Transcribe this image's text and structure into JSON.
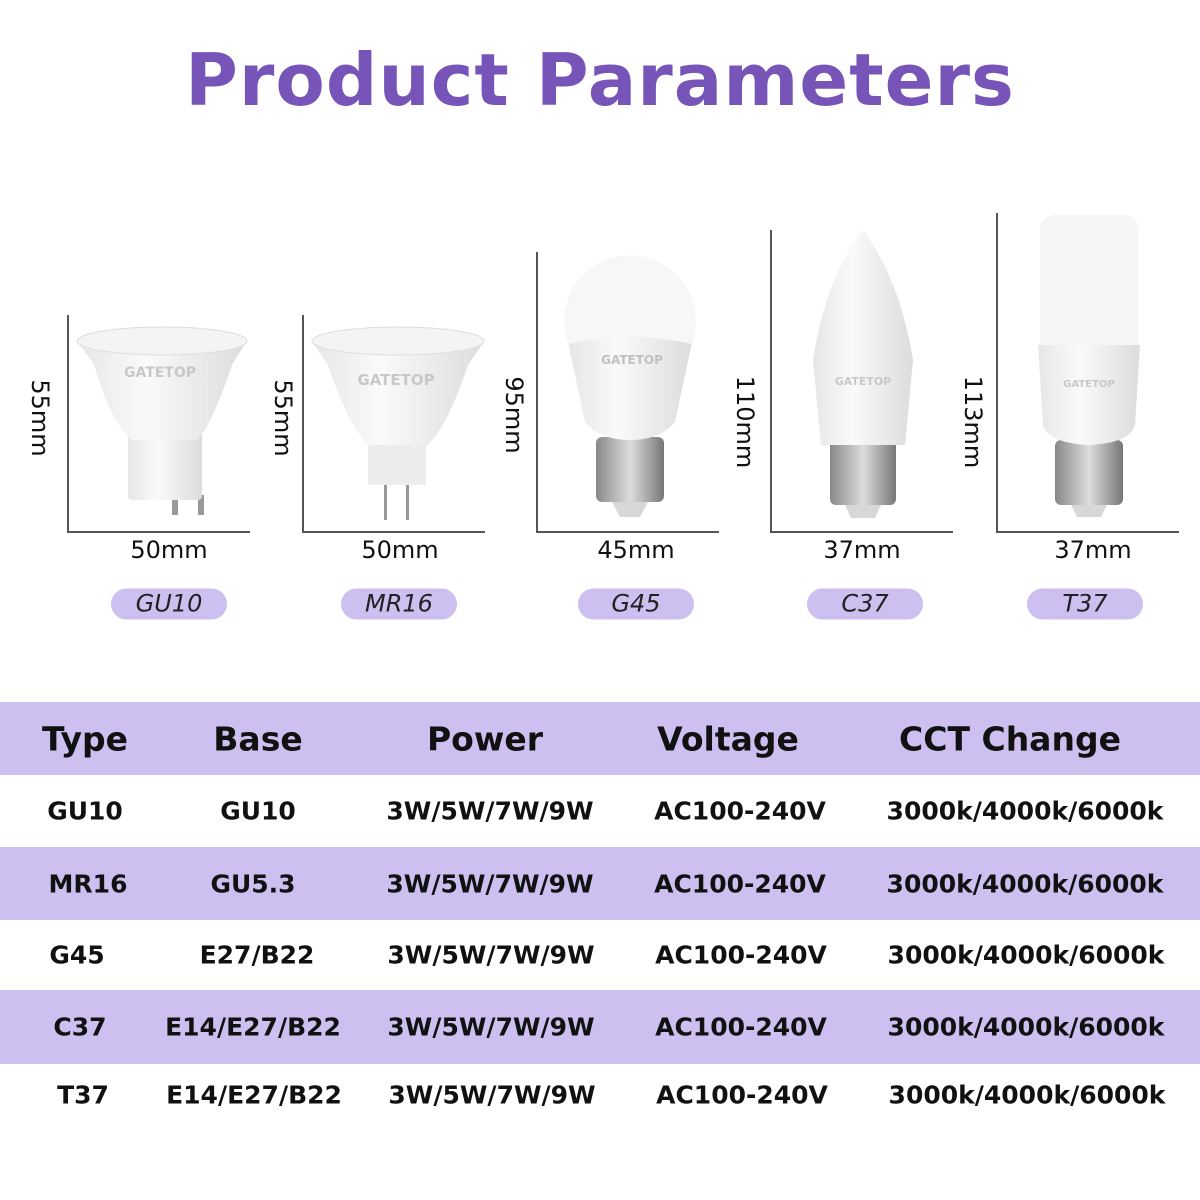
{
  "title": "Product Parameters",
  "brand_logo": "GATETOP",
  "colors": {
    "title": "#7654b8",
    "accent": "#cdbff0"
  },
  "products": [
    {
      "type": "GU10",
      "height": "55mm",
      "width": "50mm"
    },
    {
      "type": "MR16",
      "height": "55mm",
      "width": "50mm"
    },
    {
      "type": "G45",
      "height": "95mm",
      "width": "45mm"
    },
    {
      "type": "C37",
      "height": "110mm",
      "width": "37mm"
    },
    {
      "type": "T37",
      "height": "113mm",
      "width": "37mm"
    }
  ],
  "table": {
    "headers": [
      "Type",
      "Base",
      "Power",
      "Voltage",
      "CCT Change"
    ],
    "rows": [
      [
        "GU10",
        "GU10",
        "3W/5W/7W/9W",
        "AC100-240V",
        "3000k/4000k/6000k"
      ],
      [
        "MR16",
        "GU5.3",
        "3W/5W/7W/9W",
        "AC100-240V",
        "3000k/4000k/6000k"
      ],
      [
        "G45",
        "E27/B22",
        "3W/5W/7W/9W",
        "AC100-240V",
        "3000k/4000k/6000k"
      ],
      [
        "C37",
        "E14/E27/B22",
        "3W/5W/7W/9W",
        "AC100-240V",
        "3000k/4000k/6000k"
      ],
      [
        "T37",
        "E14/E27/B22",
        "3W/5W/7W/9W",
        "AC100-240V",
        "3000k/4000k/6000k"
      ]
    ]
  }
}
